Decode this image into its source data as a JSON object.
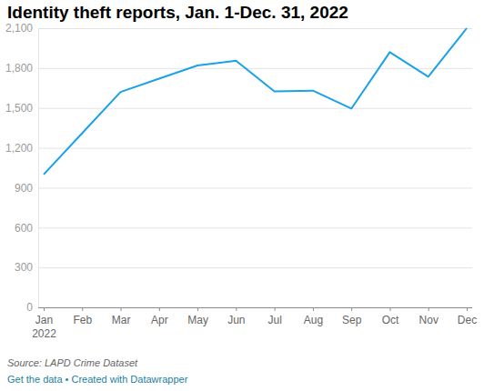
{
  "chart_data": {
    "type": "line",
    "title": "Identity theft reports, Jan. 1-Dec. 31, 2022",
    "annotations": [
      "Source: LAPD Crime Dataset",
      "Get the data • Created with Datawrapper"
    ],
    "categories": [
      "Jan 2022",
      "Feb",
      "Mar",
      "Apr",
      "May",
      "Jun",
      "Jul",
      "Aug",
      "Sep",
      "Oct",
      "Nov",
      "Dec"
    ],
    "values": [
      1000,
      1310,
      1620,
      1720,
      1820,
      1855,
      1625,
      1630,
      1495,
      1920,
      1735,
      2100
    ],
    "color": "#1aa1e8",
    "ylim": [
      0,
      2100
    ],
    "yticks": [
      0,
      300,
      600,
      900,
      {
        "value": 1200,
        "label": "1,200"
      },
      {
        "value": 1500,
        "label": "1,500"
      },
      {
        "value": 1800,
        "label": "1,800"
      },
      {
        "value": 2100,
        "label": "2,100"
      }
    ],
    "grid": true
  }
}
